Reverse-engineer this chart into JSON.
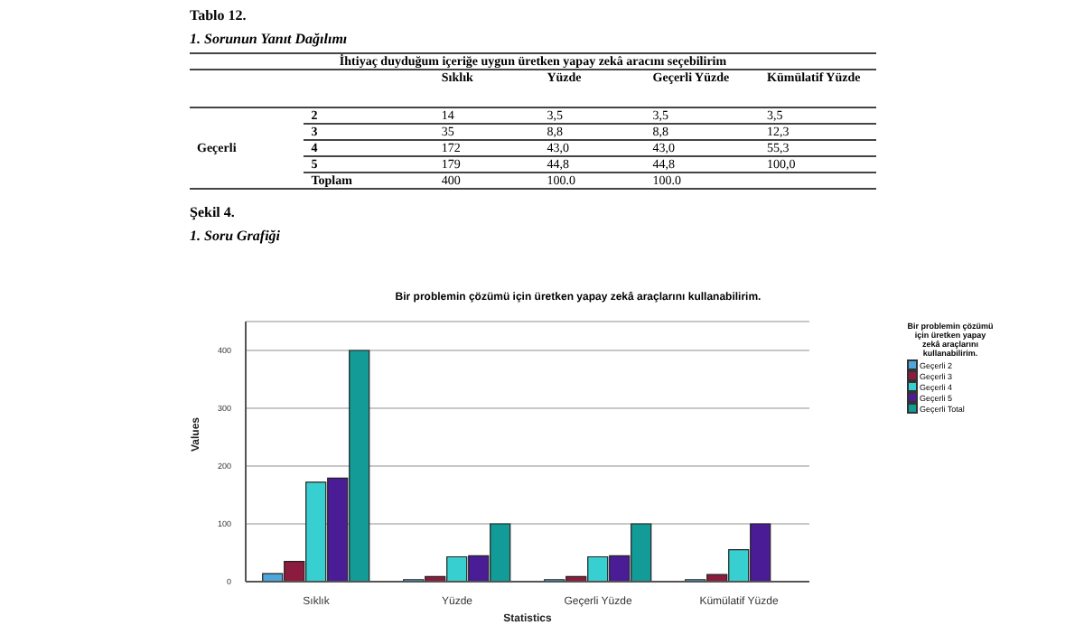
{
  "chart_data": {
    "type": "bar",
    "title": "Bir problemin çözümü için üretken yapay zekâ araçlarını kullanabilirim.",
    "legend_title": "Bir problemin çözümü için üretken yapay zekâ araçlarını kullanabilirim.",
    "xlabel": "Statistics",
    "ylabel": "Values",
    "annotations": [
      "Tablo 12.",
      "1. Sorunun Yanıt Dağılımı",
      "İhtiyaç duyduğum içeriğe uygun üretken yapay zekâ aracını seçebilirim",
      "Geçerli",
      "2",
      "3",
      "4",
      "5",
      "Toplam",
      "Şekil 4.",
      "1. Soru Grafiği",
      "14",
      "3,5",
      "3,5",
      "3,5",
      "35",
      "8,8",
      "8,8",
      "12,3",
      "172",
      "43,0",
      "43,0",
      "55,3",
      "179",
      "44,8",
      "44,8",
      "100,0",
      "400",
      "100.0",
      "100.0"
    ],
    "categories": [
      "Sıklık",
      "Yüzde",
      "Geçerli Yüzde",
      "Kümülatif Yüzde"
    ],
    "series": [
      {
        "name": "Geçerli 2",
        "color": "#4ea6dc",
        "values": [
          14,
          3.5,
          3.5,
          3.5
        ]
      },
      {
        "name": "Geçerli 3",
        "color": "#8c1c3e",
        "values": [
          35,
          8.8,
          8.8,
          12.3
        ]
      },
      {
        "name": "Geçerli 4",
        "color": "#38cfd1",
        "values": [
          172,
          43.0,
          43.0,
          55.3
        ]
      },
      {
        "name": "Geçerli 5",
        "color": "#4a1c96",
        "values": [
          179,
          44.8,
          44.8,
          100.0
        ]
      },
      {
        "name": "Geçerli Total",
        "color": "#139b97",
        "values": [
          400,
          100.0,
          100.0,
          null
        ]
      }
    ],
    "ylim": [
      0,
      450
    ],
    "yticks": [
      0,
      100,
      200,
      300,
      400
    ],
    "grid": "y",
    "legend": "top right"
  }
}
